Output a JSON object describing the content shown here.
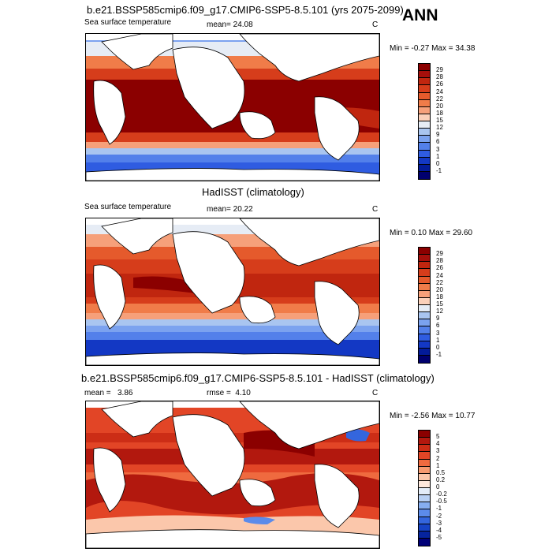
{
  "season": "ANN",
  "panels": [
    {
      "title": "b.e21.BSSP585cmip6.f09_g17.CMIP6-SSP5-8.5.101 (yrs 2075-2099)",
      "left_label": "Sea surface temperature",
      "stat_label": "mean=",
      "stat_value": "24.08",
      "stat2_label": "",
      "stat2_value": "",
      "units": "C",
      "min_label": "Min =",
      "min": "-0.27",
      "max_label": "Max =",
      "max": "34.38",
      "levels": [
        "29",
        "28",
        "26",
        "24",
        "22",
        "20",
        "18",
        "15",
        "12",
        "9",
        "6",
        "3",
        "1",
        "0",
        "-1"
      ],
      "colors": [
        "#8b0000",
        "#a50f0b",
        "#c0260f",
        "#d63d1b",
        "#e55a2c",
        "#f07c49",
        "#f6a07a",
        "#fbd0b9",
        "#e6ecf5",
        "#a9c5f0",
        "#7ba2ef",
        "#5380ea",
        "#2f5ce1",
        "#1338c4",
        "#031b99",
        "#00006e"
      ]
    },
    {
      "title": "HadISST (climatology)",
      "left_label": "Sea surface temperature",
      "stat_label": "mean=",
      "stat_value": "20.22",
      "stat2_label": "",
      "stat2_value": "",
      "units": "C",
      "min_label": "Min =",
      "min": "0.10",
      "max_label": "Max =",
      "max": "29.60",
      "levels": [
        "29",
        "28",
        "26",
        "24",
        "22",
        "20",
        "18",
        "15",
        "12",
        "9",
        "6",
        "3",
        "1",
        "0",
        "-1"
      ],
      "colors": [
        "#8b0000",
        "#a50f0b",
        "#c0260f",
        "#d63d1b",
        "#e55a2c",
        "#f07c49",
        "#f6a07a",
        "#fbd0b9",
        "#e6ecf5",
        "#a9c5f0",
        "#7ba2ef",
        "#5380ea",
        "#2f5ce1",
        "#1338c4",
        "#031b99",
        "#00006e"
      ]
    },
    {
      "title": "b.e21.BSSP585cmip6.f09_g17.CMIP6-SSP5-8.5.101 - HadISST (climatology)",
      "left_label": "mean =",
      "stat_label": "",
      "stat_value": "3.86",
      "stat2_label": "rmse =",
      "stat2_value": "4.10",
      "units": "C",
      "min_label": "Min =",
      "min": "-2.56",
      "max_label": "Max =",
      "max": "10.77",
      "levels": [
        "5",
        "4",
        "3",
        "2",
        "1",
        "0.5",
        "0.2",
        "0",
        "-0.2",
        "-0.5",
        "-1",
        "-2",
        "-3",
        "-4",
        "-5"
      ],
      "colors": [
        "#8b0000",
        "#b2180e",
        "#cc2d16",
        "#e24526",
        "#ef6a3f",
        "#f69a70",
        "#fbc7ab",
        "#fde7db",
        "#e3ecf8",
        "#b8d0f4",
        "#86aef0",
        "#5c8bea",
        "#3466de",
        "#1643c6",
        "#06249f",
        "#000078"
      ]
    }
  ]
}
